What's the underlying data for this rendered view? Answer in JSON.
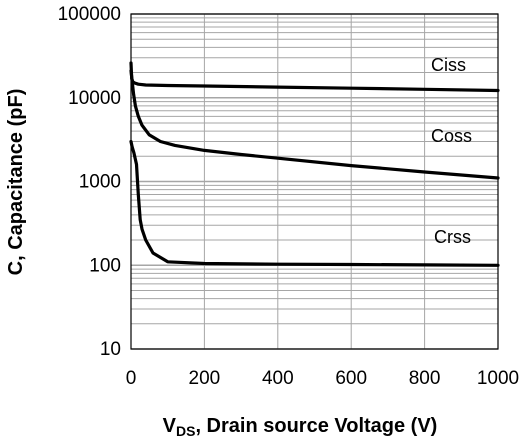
{
  "chart_data": {
    "type": "line",
    "title": "",
    "xlabel_main": "V",
    "xlabel_sub": "DS",
    "xlabel_rest": ", Drain source Voltage (V)",
    "ylabel": "C, Capacitance (pF)",
    "xlim": [
      0,
      1000
    ],
    "ylim": [
      10,
      100000
    ],
    "y_scale": "log",
    "x_ticks": [
      0,
      200,
      400,
      600,
      800,
      1000
    ],
    "x_tick_labels": [
      "0",
      "200",
      "400",
      "600",
      "800",
      "1000"
    ],
    "y_ticks": [
      10,
      100,
      1000,
      10000,
      100000
    ],
    "y_tick_labels": [
      "10",
      "100",
      "1000",
      "10000",
      "100000"
    ],
    "grid": true,
    "grid_color": "#a6a6a6",
    "line_color": "#000000",
    "series": [
      {
        "name": "Ciss",
        "x": [
          0,
          2,
          5,
          10,
          20,
          40,
          100,
          200,
          400,
          600,
          800,
          1000
        ],
        "y": [
          26000,
          17000,
          15500,
          15000,
          14500,
          14200,
          14000,
          13800,
          13400,
          13000,
          12600,
          12200
        ]
      },
      {
        "name": "Coss",
        "x": [
          0,
          3,
          7,
          12,
          20,
          30,
          50,
          80,
          120,
          200,
          300,
          400,
          600,
          800,
          1000
        ],
        "y": [
          21000,
          16000,
          11000,
          8000,
          6000,
          4700,
          3600,
          3000,
          2700,
          2350,
          2100,
          1900,
          1550,
          1300,
          1100
        ]
      },
      {
        "name": "Crss",
        "x": [
          0,
          3,
          8,
          15,
          20,
          25,
          30,
          40,
          60,
          100,
          200,
          400,
          600,
          800,
          1000
        ],
        "y": [
          3000,
          2600,
          2200,
          1600,
          700,
          350,
          270,
          200,
          140,
          110,
          105,
          103,
          102,
          101,
          100
        ]
      }
    ],
    "annotations": [
      {
        "text": "Ciss",
        "series": "Ciss"
      },
      {
        "text": "Coss",
        "series": "Coss"
      },
      {
        "text": "Crss",
        "series": "Crss"
      }
    ]
  }
}
